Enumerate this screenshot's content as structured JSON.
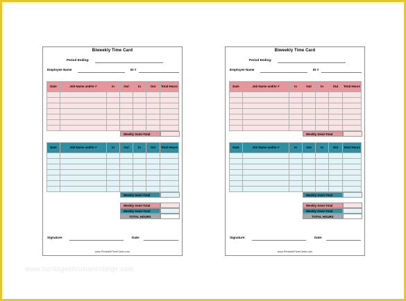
{
  "cards": [
    {
      "title": "Biweekly Time Card",
      "period_label": "Period Ending:",
      "employee_label": "Employee Name",
      "id_label": "ID #",
      "headers": [
        "Date",
        "Job Name and/or #",
        "In",
        "Out",
        "In",
        "Out",
        "Total Hours"
      ],
      "semi_total_label": "Weekly Semi-Total",
      "total_hours_label": "TOTAL HOURS",
      "signature_label": "Signature:",
      "date_label": "Date:",
      "footer": "www.PrintableTimeCards.com"
    },
    {
      "title": "Biweekly Time Card",
      "period_label": "Period Ending:",
      "employee_label": "Employee Name",
      "id_label": "ID #",
      "headers": [
        "Date",
        "Job Name and/or #",
        "In",
        "Out",
        "In",
        "Out",
        "Total Hours"
      ],
      "semi_total_label": "Weekly Semi-Total",
      "total_hours_label": "TOTAL HOURS",
      "signature_label": "Signature:",
      "date_label": "Date:",
      "footer": "www.PrintableTimeCards.com"
    }
  ],
  "watermark": "www.heritagechristiancollege.com",
  "colors": {
    "border": "#e6c62c",
    "pink_header": "#e6959a",
    "pink_cell": "#fbe3e5",
    "teal_header": "#2e8fa3",
    "teal_cell": "#e0f5f9",
    "gray_total": "#a7a7a7"
  }
}
